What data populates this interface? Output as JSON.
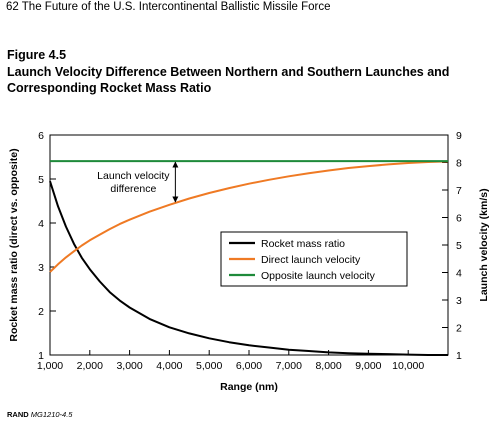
{
  "page": {
    "running_head": "62    The Future of the U.S. Intercontinental Ballistic Missile Force",
    "figure_label": "Figure 4.5",
    "figure_title": "Launch Velocity Difference Between Northern and Southern Launches and Corresponding Rocket Mass Ratio",
    "source_org": "RAND",
    "source_id": "MG1210-4.5"
  },
  "chart_data": {
    "type": "line",
    "title": "Launch Velocity Difference Between Northern and Southern Launches and Corresponding Rocket Mass Ratio",
    "xlabel": "Range (nm)",
    "ylabel_left": "Rocket mass ratio (direct vs. opposite)",
    "ylabel_right": "Launch velocity (km/s)",
    "xlim": [
      1000,
      11000
    ],
    "ylim_left": [
      1,
      6
    ],
    "ylim_right": [
      1,
      9
    ],
    "x_ticks": [
      1000,
      2000,
      3000,
      4000,
      5000,
      6000,
      7000,
      8000,
      9000,
      10000
    ],
    "x_tick_labels": [
      "1,000",
      "2,000",
      "3,000",
      "4,000",
      "5,000",
      "6,000",
      "7,000",
      "8,000",
      "9,000",
      "10,000"
    ],
    "y_ticks_left": [
      "1",
      "2",
      "3",
      "4",
      "5",
      "6"
    ],
    "y_ticks_right": [
      "1",
      "2",
      "3",
      "4",
      "5",
      "6",
      "7",
      "8",
      "9"
    ],
    "grid": false,
    "legend_position": "center-right",
    "series": [
      {
        "name": "Rocket mass ratio",
        "axis": "left",
        "color": "#000000",
        "x": [
          1000,
          1200,
          1400,
          1600,
          1800,
          2000,
          2250,
          2500,
          2750,
          3000,
          3500,
          4000,
          4500,
          5000,
          5500,
          6000,
          6500,
          7000,
          7500,
          8000,
          8500,
          9000,
          9500,
          10000,
          10500,
          11000
        ],
        "y": [
          4.95,
          4.38,
          3.92,
          3.53,
          3.21,
          2.95,
          2.67,
          2.43,
          2.24,
          2.08,
          1.82,
          1.63,
          1.49,
          1.38,
          1.29,
          1.22,
          1.17,
          1.12,
          1.09,
          1.06,
          1.04,
          1.03,
          1.02,
          1.01,
          1.0,
          1.0
        ]
      },
      {
        "name": "Direct launch velocity",
        "axis": "right",
        "color": "#ef7a24",
        "x": [
          1000,
          1200,
          1400,
          1600,
          1800,
          2000,
          2250,
          2500,
          2750,
          3000,
          3500,
          4000,
          4500,
          5000,
          5500,
          6000,
          6500,
          7000,
          7500,
          8000,
          8500,
          9000,
          9500,
          10000,
          10500,
          11000
        ],
        "y": [
          4.02,
          4.3,
          4.55,
          4.77,
          4.98,
          5.17,
          5.38,
          5.58,
          5.76,
          5.92,
          6.21,
          6.46,
          6.69,
          6.89,
          7.07,
          7.23,
          7.37,
          7.5,
          7.61,
          7.71,
          7.8,
          7.87,
          7.93,
          7.98,
          8.02,
          8.04
        ]
      },
      {
        "name": "Opposite launch velocity",
        "axis": "right",
        "color": "#1e8a3a",
        "x": [
          1000,
          11000
        ],
        "y": [
          8.05,
          8.05
        ]
      }
    ],
    "annotation": {
      "lines": [
        "Launch velocity",
        "difference"
      ],
      "arrow_x": 4150
    }
  }
}
